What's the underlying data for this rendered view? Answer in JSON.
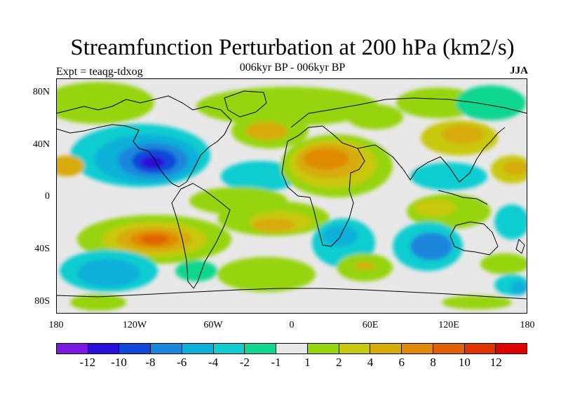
{
  "title": "Streamfunction Perturbation at 200 hPa (km2/s)",
  "subtitle": "006kyr BP - 006kyr BP",
  "experiment": "Expt = teaqg-tdxog",
  "season": "JJA",
  "map": {
    "latitude_labels": [
      "80N",
      "40N",
      "0",
      "40S",
      "80S"
    ],
    "longitude_labels": [
      "180",
      "120W",
      "60W",
      "0",
      "60E",
      "120E",
      "180"
    ],
    "background_color": "#e8e8e8"
  },
  "colorbar": {
    "colors": [
      "#7a1ae0",
      "#2a10d8",
      "#1048d8",
      "#1a86dc",
      "#0cb0d8",
      "#10cdd0",
      "#10d690",
      "#e8e8e8",
      "#96d40c",
      "#c8c80e",
      "#d8ac08",
      "#e08a06",
      "#e06204",
      "#e03402",
      "#e00000"
    ],
    "labels": [
      "-12",
      "-10",
      "-8",
      "-6",
      "-4",
      "-2",
      "-1",
      "1",
      "2",
      "4",
      "6",
      "8",
      "10",
      "12"
    ]
  }
}
